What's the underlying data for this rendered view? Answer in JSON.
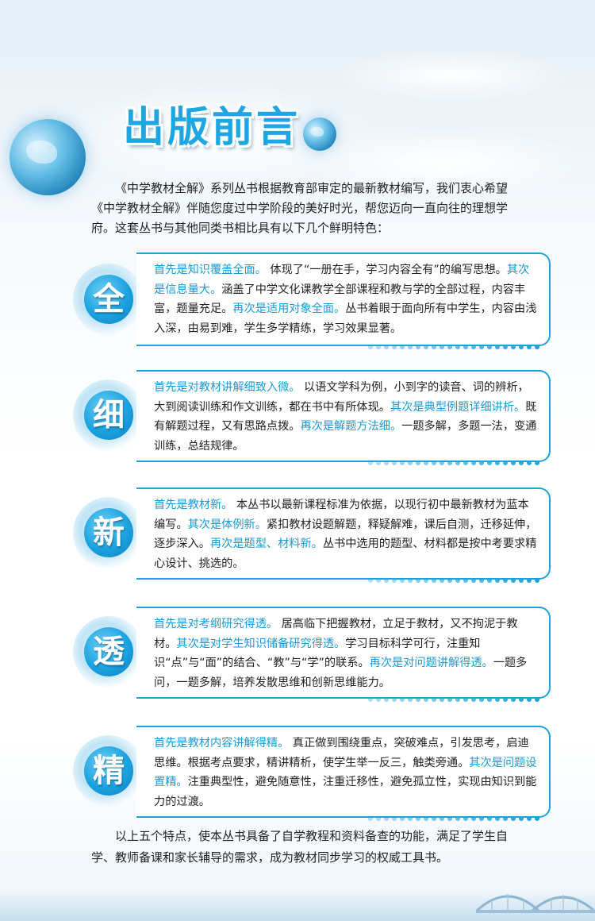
{
  "title": "出版前言",
  "intro": "《中学教材全解》系列丛书根据教育部审定的最新教材编写，我们衷心希望《中学教材全解》伴随您度过中学阶段的美好时光，帮您迈向一直向往的理想学府。这套丛书与其他同类书相比具有以下几个鲜明特色：",
  "sections": [
    {
      "char": "全",
      "parts": [
        {
          "hl": true,
          "t": "首先是知识覆盖全面。"
        },
        {
          "hl": false,
          "t": " 体现了“一册在手，学习内容全有”的编写思想。"
        },
        {
          "hl": true,
          "t": "其次是信息量大。"
        },
        {
          "hl": false,
          "t": "涵盖了中学文化课教学全部课程和教与学的全部过程，内容丰富，题量充足。"
        },
        {
          "hl": true,
          "t": "再次是适用对象全面。"
        },
        {
          "hl": false,
          "t": "丛书着眼于面向所有中学生，内容由浅入深，由易到难，学生多学精练，学习效果显著。"
        }
      ]
    },
    {
      "char": "细",
      "parts": [
        {
          "hl": true,
          "t": "首先是对教材讲解细致入微。"
        },
        {
          "hl": false,
          "t": " 以语文学科为例，小到字的读音、词的辨析，大到阅读训练和作文训练，都在书中有所体现。"
        },
        {
          "hl": true,
          "t": "其次是典型例题详细讲析。"
        },
        {
          "hl": false,
          "t": "既有解题过程，又有思路点拨。"
        },
        {
          "hl": true,
          "t": "再次是解题方法细。"
        },
        {
          "hl": false,
          "t": "一题多解，多题一法，变通训练，总结规律。"
        }
      ]
    },
    {
      "char": "新",
      "parts": [
        {
          "hl": true,
          "t": "首先是教材新。"
        },
        {
          "hl": false,
          "t": " 本丛书以最新课程标准为依据，以现行初中最新教材为蓝本编写。"
        },
        {
          "hl": true,
          "t": "其次是体例新。"
        },
        {
          "hl": false,
          "t": "紧扣教材设题解题，释疑解难，课后自测，迁移延伸，逐步深入。"
        },
        {
          "hl": true,
          "t": "再次是题型、材料新。"
        },
        {
          "hl": false,
          "t": "丛书中选用的题型、材料都是按中考要求精心设计、挑选的。"
        }
      ]
    },
    {
      "char": "透",
      "parts": [
        {
          "hl": true,
          "t": "首先是对考纲研究得透。"
        },
        {
          "hl": false,
          "t": " 居高临下把握教材，立足于教材，又不拘泥于教材。"
        },
        {
          "hl": true,
          "t": "其次是对学生知识储备研究得透。"
        },
        {
          "hl": false,
          "t": "学习目标科学可行，注重知识“点”与“面”的结合、“教”与“学”的联系。"
        },
        {
          "hl": true,
          "t": "再次是对问题讲解得透。"
        },
        {
          "hl": false,
          "t": "一题多问，一题多解，培养发散思维和创新思维能力。"
        }
      ]
    },
    {
      "char": "精",
      "parts": [
        {
          "hl": true,
          "t": "首先是教材内容讲解得精。"
        },
        {
          "hl": false,
          "t": " 真正做到围绕重点，突破难点，引发思考，启迪思维。根据考点要求，精讲精析，使学生举一反三，触类旁通。"
        },
        {
          "hl": true,
          "t": "其次是问题设置精。"
        },
        {
          "hl": false,
          "t": "注重典型性，避免随意性，注重迁移性，避免孤立性，实现由知识到能力的过渡。"
        }
      ]
    }
  ],
  "closing": "以上五个特点，使本丛书具备了自学教程和资料备查的功能，满足了学生自学、教师备课和家长辅导的需求，成为教材同步学习的权威工具书。",
  "colors": {
    "accent": "#1aa3de",
    "text": "#222222"
  },
  "icons": [
    "globe-icon",
    "bridge-icon",
    "dotted-divider-icon"
  ]
}
